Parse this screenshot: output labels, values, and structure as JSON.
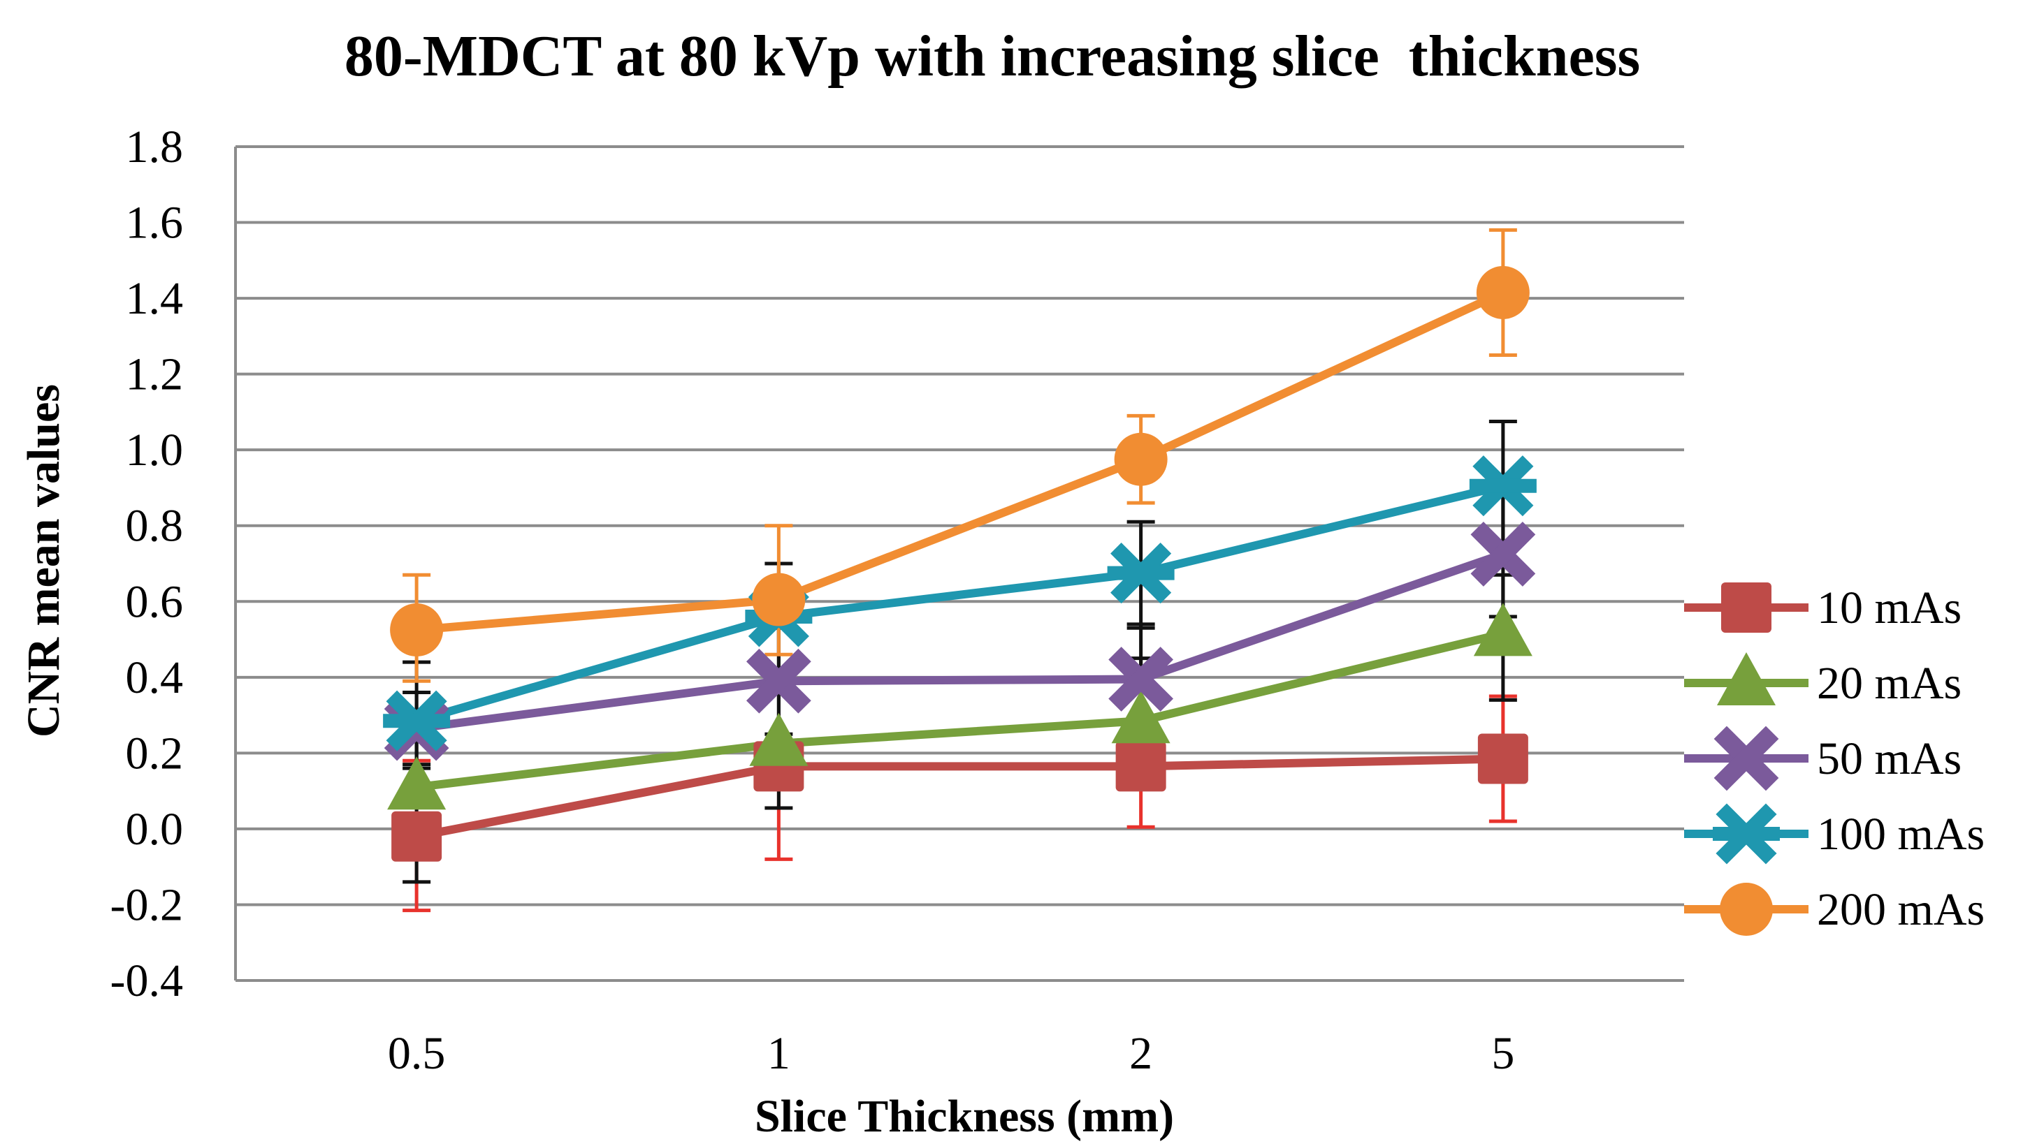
{
  "chart_data": {
    "type": "line",
    "title": "80-MDCT at 80 kVp with increasing slice  thickness",
    "xlabel": "Slice Thickness (mm)",
    "ylabel": "CNR mean values",
    "categories": [
      "0.5",
      "1",
      "2",
      "5"
    ],
    "ylim": [
      -0.4,
      1.8
    ],
    "ytick_step": 0.2,
    "yticks": [
      "-0.4",
      "-0.2",
      "0.0",
      "0.2",
      "0.4",
      "0.6",
      "0.8",
      "1.0",
      "1.2",
      "1.4",
      "1.6",
      "1.8"
    ],
    "grid": true,
    "legend_position": "right",
    "series": [
      {
        "name": "10 mAs",
        "color": "#BE4B48",
        "marker": "square",
        "values": [
          -0.02,
          0.165,
          0.165,
          0.185
        ],
        "error_low": [
          -0.215,
          -0.08,
          0.005,
          0.02
        ],
        "error_high": [
          0.18,
          0.2,
          0.21,
          0.35
        ]
      },
      {
        "name": "20 mAs",
        "color": "#77A03C",
        "marker": "triangle",
        "values": [
          0.11,
          0.225,
          0.285,
          0.515
        ],
        "error_low": [
          -0.14,
          0.055,
          0.16,
          0.34
        ],
        "error_high": [
          0.31,
          0.42,
          0.45,
          0.67
        ]
      },
      {
        "name": "50 mAs",
        "color": "#7B5A9B",
        "marker": "x",
        "values": [
          0.265,
          0.39,
          0.395,
          0.725
        ],
        "error_low": [
          0.17,
          0.25,
          0.25,
          0.56
        ],
        "error_high": [
          0.36,
          0.53,
          0.54,
          0.89
        ]
      },
      {
        "name": "100 mAs",
        "color": "#1F97AF",
        "marker": "star",
        "values": [
          0.285,
          0.56,
          0.675,
          0.905
        ],
        "error_low": [
          0.16,
          0.38,
          0.53,
          0.74
        ],
        "error_high": [
          0.44,
          0.7,
          0.81,
          1.075
        ]
      },
      {
        "name": "200 mAs",
        "color": "#F18D32",
        "marker": "circle",
        "values": [
          0.525,
          0.605,
          0.975,
          1.415
        ],
        "error_low": [
          0.39,
          0.46,
          0.86,
          1.25
        ],
        "error_high": [
          0.67,
          0.8,
          1.09,
          1.58
        ]
      }
    ]
  }
}
